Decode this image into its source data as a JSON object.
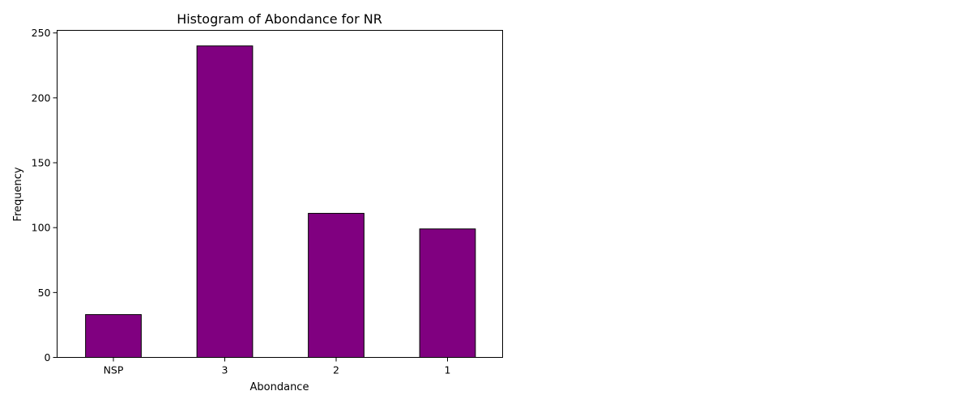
{
  "chart_data": {
    "type": "bar",
    "title": "Histogram of Abondance for NR",
    "xlabel": "Abondance",
    "ylabel": "Frequency",
    "categories": [
      "NSP",
      "3",
      "2",
      "1"
    ],
    "values": [
      33,
      240,
      111,
      99
    ],
    "ylim": [
      0,
      252
    ],
    "yticks": [
      0,
      50,
      100,
      150,
      200,
      250
    ],
    "bar_color": "#800080",
    "edge_color": "#000000",
    "grid": false,
    "legend": "none"
  }
}
